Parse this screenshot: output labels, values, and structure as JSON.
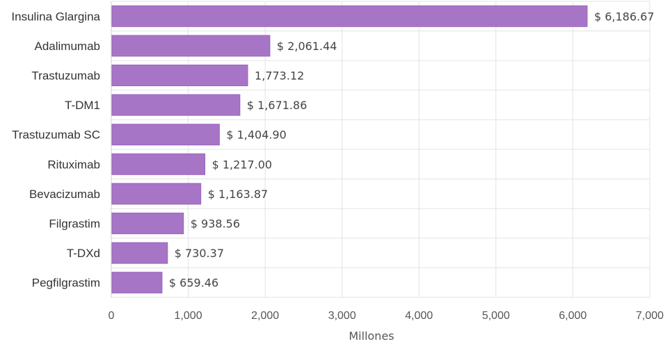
{
  "chart_data": {
    "type": "bar",
    "orientation": "horizontal",
    "categories": [
      "Insulina Glargina",
      "Adalimumab",
      "Trastuzumab",
      "T-DM1",
      "Trastuzumab SC",
      "Rituximab",
      "Bevacizumab",
      "Filgrastim",
      "T-DXd",
      "Pegfilgrastim"
    ],
    "values": [
      6186.67,
      2061.44,
      1773.12,
      1671.86,
      1404.9,
      1217.0,
      1163.87,
      938.56,
      730.37,
      659.46
    ],
    "value_labels": [
      "$ 6,186.67",
      "$ 2,061.44",
      "1,773.12",
      "$ 1,671.86",
      "$ 1,404.90",
      "$ 1,217.00",
      "$ 1,163.87",
      "$ 938.56",
      "$ 730.37",
      "$ 659.46"
    ],
    "title": "",
    "xlabel": "Millones",
    "ylabel": "",
    "xlim": [
      0,
      7000
    ],
    "x_ticks": [
      0,
      1000,
      2000,
      3000,
      4000,
      5000,
      6000,
      7000
    ],
    "x_tick_labels": [
      "0",
      "1,000",
      "2,000",
      "3,000",
      "4,000",
      "5,000",
      "6,000",
      "7,000"
    ],
    "grid": true,
    "legend": "none",
    "bar_color": "#a775c6",
    "bar_edge_color": "#9a63bd"
  }
}
